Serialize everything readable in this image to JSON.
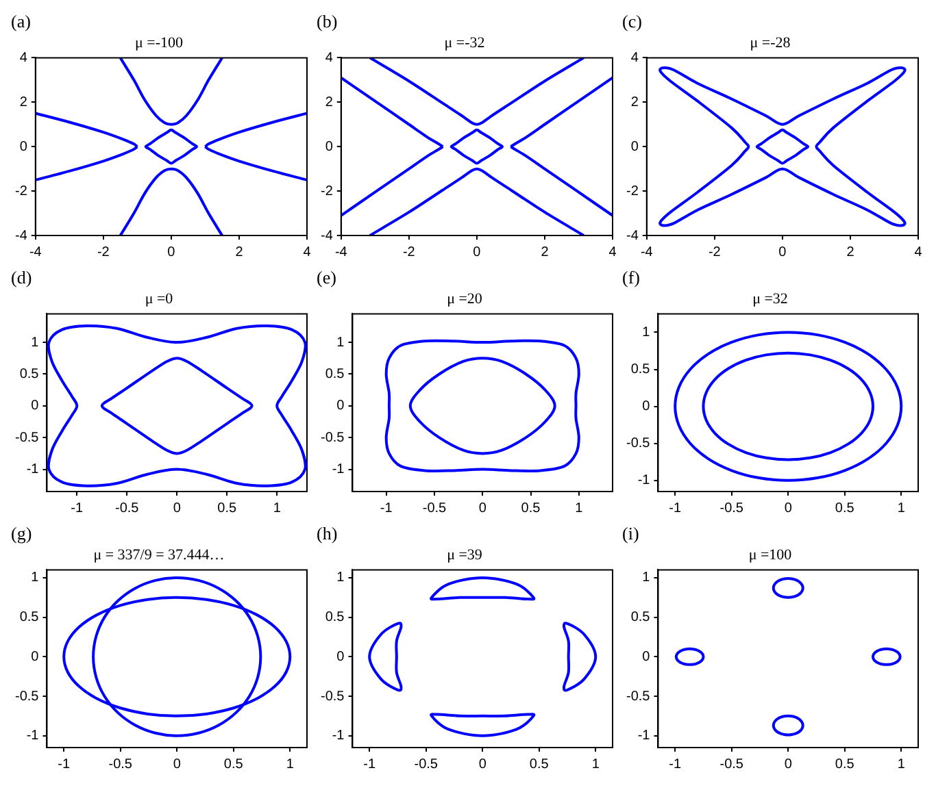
{
  "chart_data": [
    {
      "type": "line",
      "title": "μ =-100",
      "annotations": [
        "(a)"
      ],
      "marker": "none",
      "xlim": [
        -4,
        4
      ],
      "ylim": [
        -4,
        4
      ],
      "xticks": [
        -4,
        -2,
        0,
        2,
        4
      ],
      "yticks": [
        -4,
        -2,
        0,
        2,
        4
      ],
      "series": [
        {
          "color": "#0000ff",
          "x": [
            -1.5,
            -1.1,
            -0.78,
            -0.45,
            -0.2,
            0,
            0.2,
            0.45,
            0.78,
            1.1,
            1.5
          ],
          "values": [
            4,
            3,
            2.1,
            1.4,
            1.08,
            1,
            1.08,
            1.4,
            2.1,
            3,
            4
          ]
        },
        {
          "color": "#0000ff",
          "x": [
            -1.5,
            -1.1,
            -0.78,
            -0.45,
            -0.2,
            0,
            0.2,
            0.45,
            0.78,
            1.1,
            1.5
          ],
          "values": [
            -4,
            -3,
            -2.1,
            -1.4,
            -1.08,
            -1,
            -1.08,
            -1.4,
            -2.1,
            -3,
            -4
          ]
        },
        {
          "color": "#0000ff",
          "x": [
            1,
            1.1,
            1.4,
            2,
            3,
            4
          ],
          "values": [
            0,
            0.12,
            0.32,
            0.65,
            1.1,
            1.5
          ]
        },
        {
          "color": "#0000ff",
          "x": [
            1,
            1.1,
            1.4,
            2,
            3,
            4
          ],
          "values": [
            0,
            -0.12,
            -0.32,
            -0.65,
            -1.1,
            -1.5
          ]
        },
        {
          "color": "#0000ff",
          "x": [
            -4,
            -3,
            -2,
            -1.4,
            -1.1,
            -1
          ],
          "values": [
            1.5,
            1.1,
            0.65,
            0.32,
            0.12,
            0
          ]
        },
        {
          "color": "#0000ff",
          "x": [
            -4,
            -3,
            -2,
            -1.4,
            -1.1,
            -1
          ],
          "values": [
            -1.5,
            -1.1,
            -0.65,
            -0.32,
            -0.12,
            0
          ]
        }
      ]
    },
    {
      "type": "line",
      "title": "μ =-32",
      "annotations": [
        "(b)"
      ],
      "marker": "none",
      "xlim": [
        -4,
        4
      ],
      "ylim": [
        -4,
        4
      ],
      "xticks": [
        -4,
        -2,
        0,
        2,
        4
      ],
      "yticks": [
        -4,
        -2,
        0,
        2,
        4
      ],
      "series": [
        {
          "color": "#0000ff",
          "x": [
            -3.15,
            -2,
            -1,
            -0.45,
            -0.15,
            0,
            0.15,
            0.45,
            1,
            2,
            3.15
          ],
          "values": [
            4,
            2.95,
            1.95,
            1.4,
            1.08,
            1,
            1.08,
            1.4,
            1.95,
            2.95,
            4
          ]
        },
        {
          "color": "#0000ff",
          "x": [
            -3.15,
            -2,
            -1,
            -0.45,
            -0.15,
            0,
            0.15,
            0.45,
            1,
            2,
            3.15
          ],
          "values": [
            -4,
            -2.95,
            -1.95,
            -1.4,
            -1.08,
            -1,
            -1.08,
            -1.4,
            -1.95,
            -2.95,
            -4
          ]
        },
        {
          "color": "#0000ff",
          "x": [
            1,
            1.1,
            1.45,
            2,
            3,
            4
          ],
          "values": [
            0,
            0.1,
            0.42,
            1,
            2.05,
            3.1
          ]
        },
        {
          "color": "#0000ff",
          "x": [
            1,
            1.1,
            1.45,
            2,
            3,
            4
          ],
          "values": [
            0,
            -0.1,
            -0.42,
            -1,
            -2.05,
            -3.1
          ]
        },
        {
          "color": "#0000ff",
          "x": [
            -4,
            -3,
            -2,
            -1.45,
            -1.1,
            -1
          ],
          "values": [
            3.1,
            2.05,
            1,
            0.42,
            0.1,
            0
          ]
        },
        {
          "color": "#0000ff",
          "x": [
            -4,
            -3,
            -2,
            -1.45,
            -1.1,
            -1
          ],
          "values": [
            -3.1,
            -2.05,
            -1,
            -0.42,
            -0.1,
            0
          ]
        }
      ]
    },
    {
      "type": "line",
      "title": "μ =-28",
      "annotations": [
        "(c)"
      ],
      "xlim": [
        -4,
        4
      ],
      "ylim": [
        -4,
        4
      ],
      "xticks": [
        -4,
        -2,
        0,
        2,
        4
      ],
      "yticks": [
        -4,
        -2,
        0,
        2,
        4
      ]
    },
    {
      "type": "line",
      "title": "μ =0",
      "annotations": [
        "(d)"
      ],
      "xlim": [
        -1.3,
        1.3
      ],
      "ylim": [
        -1.35,
        1.45
      ],
      "xticks": [
        -1,
        -0.5,
        0,
        0.5,
        1
      ],
      "yticks": [
        -1,
        -0.5,
        0,
        0.5,
        1
      ]
    },
    {
      "type": "line",
      "title": "μ =20",
      "annotations": [
        "(e)"
      ],
      "xlim": [
        -1.35,
        1.35
      ],
      "ylim": [
        -1.35,
        1.45
      ],
      "xticks": [
        -1,
        -0.5,
        0,
        0.5,
        1
      ],
      "yticks": [
        -1,
        -0.5,
        0,
        0.5,
        1
      ]
    },
    {
      "type": "line",
      "title": "μ =32",
      "annotations": [
        "(f)"
      ],
      "xlim": [
        -1.15,
        1.15
      ],
      "ylim": [
        -1.15,
        1.25
      ],
      "xticks": [
        -1,
        -0.5,
        0,
        0.5,
        1
      ],
      "yticks": [
        -1,
        -0.5,
        0,
        0.5,
        1
      ]
    },
    {
      "type": "line",
      "title": "μ = 337/9 = 37.444…",
      "annotations": [
        "(g)"
      ],
      "xlim": [
        -1.15,
        1.15
      ],
      "ylim": [
        -1.15,
        1.1
      ],
      "xticks": [
        -1,
        -0.5,
        0,
        0.5,
        1
      ],
      "yticks": [
        -1,
        -0.5,
        0,
        0.5,
        1
      ]
    },
    {
      "type": "line",
      "title": "μ =39",
      "annotations": [
        "(h)"
      ],
      "xlim": [
        -1.15,
        1.15
      ],
      "ylim": [
        -1.15,
        1.1
      ],
      "xticks": [
        -1,
        -0.5,
        0,
        0.5,
        1
      ],
      "yticks": [
        -1,
        -0.5,
        0,
        0.5,
        1
      ]
    },
    {
      "type": "line",
      "title": "μ =100",
      "annotations": [
        "(i)"
      ],
      "xlim": [
        -1.15,
        1.15
      ],
      "ylim": [
        -1.15,
        1.1
      ],
      "xticks": [
        -1,
        -0.5,
        0,
        0.5,
        1
      ],
      "yticks": [
        -1,
        -0.5,
        0,
        0.5,
        1
      ]
    }
  ]
}
